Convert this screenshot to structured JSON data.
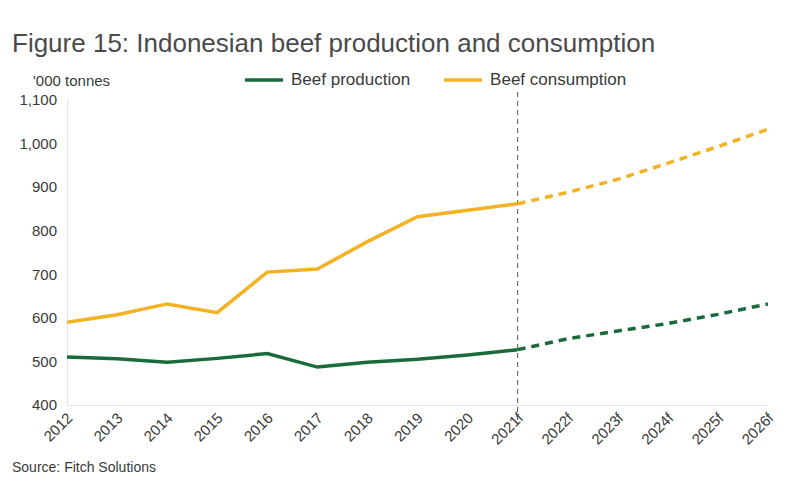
{
  "chart_data": {
    "type": "line",
    "title": "Figure 15: Indonesian beef production and consumption",
    "y_label": "'000 tonnes",
    "source": "Source: Fitch Solutions",
    "categories": [
      "2012",
      "2013",
      "2014",
      "2015",
      "2016",
      "2017",
      "2018",
      "2019",
      "2020",
      "2021f",
      "2022f",
      "2023f",
      "2024f",
      "2025f",
      "2026f"
    ],
    "series": [
      {
        "name": "Beef production",
        "color": "#1a6b3c",
        "values": [
          510,
          506,
          498,
          507,
          518,
          487,
          498,
          505,
          515,
          527,
          552,
          570,
          587,
          608,
          632
        ]
      },
      {
        "name": "Beef consumption",
        "color": "#f4b223",
        "values": [
          590,
          607,
          632,
          612,
          705,
          712,
          775,
          832,
          847,
          862,
          888,
          918,
          955,
          993,
          1033
        ]
      }
    ],
    "ylim": [
      400,
      1100
    ],
    "yticks": [
      400,
      500,
      600,
      700,
      800,
      900,
      {
        "value": 1000,
        "label": "1,000"
      },
      {
        "value": 1100,
        "label": "1,100"
      }
    ],
    "grid": false,
    "legend": "top",
    "forecast": {
      "x": "2021f",
      "line_style": "dashed"
    }
  }
}
